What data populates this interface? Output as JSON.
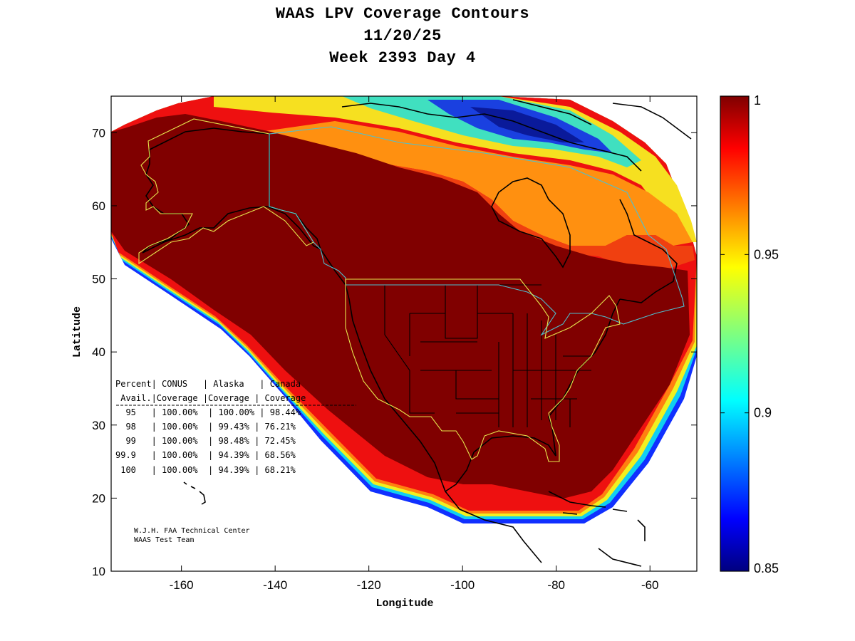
{
  "title": {
    "line1": "WAAS LPV Coverage Contours",
    "line2": "11/20/25",
    "line3": "Week 2393 Day 4"
  },
  "axes": {
    "xlabel": "Longitude",
    "ylabel": "Latitude",
    "xlim": [
      -175,
      -50
    ],
    "ylim": [
      10,
      75
    ],
    "xticks": [
      -160,
      -140,
      -120,
      -100,
      -80,
      -60
    ],
    "yticks": [
      10,
      20,
      30,
      40,
      50,
      60,
      70
    ],
    "xtick_labels": [
      "-160",
      "-140",
      "-120",
      "-100",
      "-80",
      "-60"
    ],
    "ytick_labels": [
      "10",
      "20",
      "30",
      "40",
      "50",
      "60",
      "70"
    ]
  },
  "colorbar": {
    "min": 0.85,
    "max": 1,
    "ticks": [
      1,
      0.95,
      0.9,
      0.85
    ],
    "tick_labels": [
      "1",
      "0.95",
      "0.9",
      "0.85"
    ],
    "colormap": "jet"
  },
  "stats_table": {
    "header1": "Percent| CONUS   | Alaska   | Canada",
    "header2": " Avail.|Coverage |Coverage | Coverage",
    "rows": [
      "  95   | 100.00%  | 100.00% | 98.44%",
      "  98   | 100.00%  | 99.43% | 76.21%",
      "  99   | 100.00%  | 98.48% | 72.45%",
      "99.9   | 100.00%  | 94.39% | 68.56%",
      " 100   | 100.00%  | 94.39% | 68.21%"
    ]
  },
  "credit": {
    "line1": "W.J.H. FAA Technical Center",
    "line2": "WAAS Test Team"
  },
  "colors": {
    "max_coverage": "#800000",
    "service_boundary": "#e6e64d",
    "canada_boundary": "#4dc0d0",
    "coastline": "#000000"
  }
}
